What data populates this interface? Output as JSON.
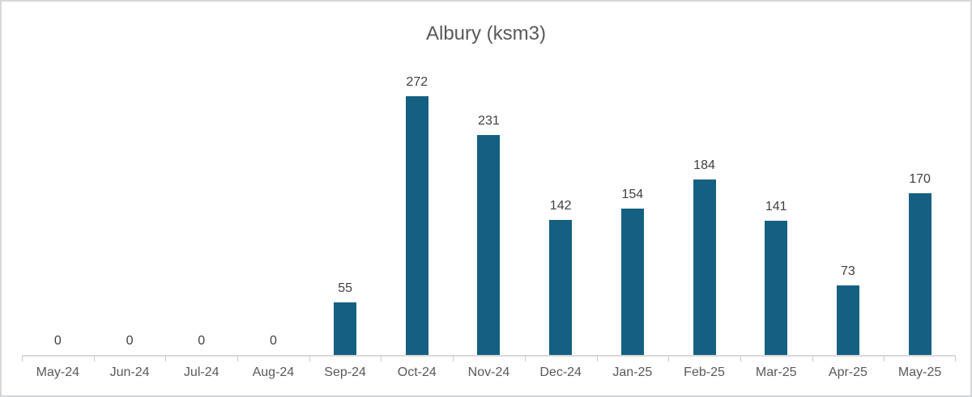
{
  "chart_data": {
    "type": "bar",
    "title": "Albury (ksm3)",
    "categories": [
      "May-24",
      "Jun-24",
      "Jul-24",
      "Aug-24",
      "Sep-24",
      "Oct-24",
      "Nov-24",
      "Dec-24",
      "Jan-25",
      "Feb-25",
      "Mar-25",
      "Apr-25",
      "May-25"
    ],
    "values": [
      0,
      0,
      0,
      0,
      55,
      272,
      231,
      142,
      154,
      184,
      141,
      73,
      170
    ],
    "data_labels": [
      "0",
      "0",
      "0",
      "0",
      "55",
      "272",
      "231",
      "142",
      "154",
      "184",
      "141",
      "73",
      "170"
    ],
    "xlabel": "",
    "ylabel": "",
    "ylim": [
      0,
      300
    ],
    "grid": false,
    "legend": false,
    "show_data_labels": true,
    "colors": {
      "bar": "#156082",
      "title_text": "#595959",
      "data_label_text": "#404040",
      "axis_label_text": "#595959",
      "axis_line": "#d9d9d9",
      "tick": "#c9c9c9",
      "canvas_border": "#d5d8da",
      "background": "#ffffff"
    }
  }
}
